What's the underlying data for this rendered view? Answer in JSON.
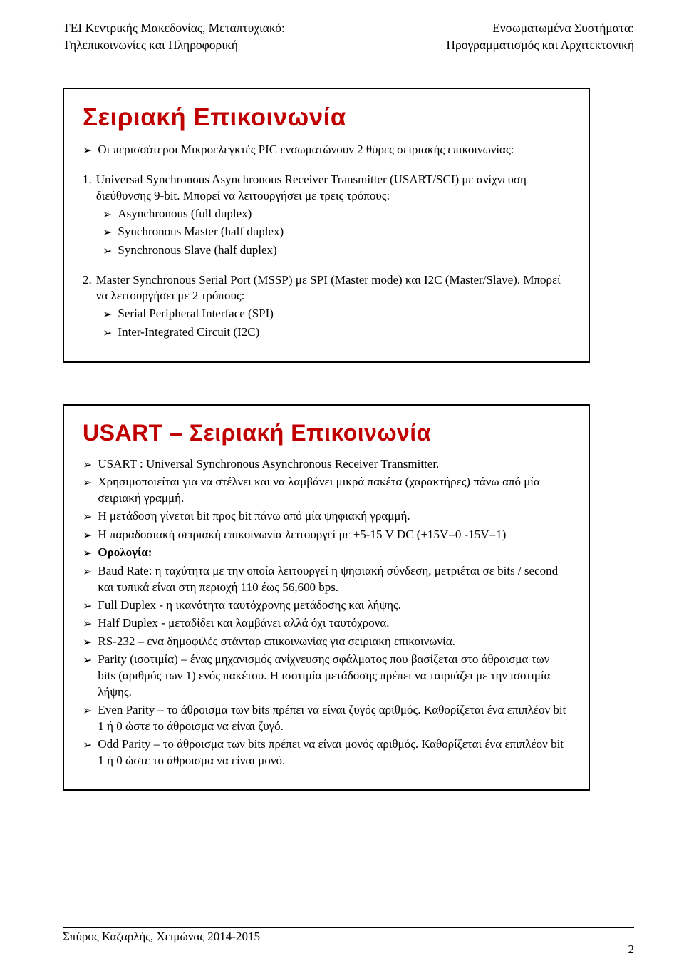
{
  "header": {
    "left_line1": "ΤΕΙ Κεντρικής Μακεδονίας, Μεταπτυχιακό:",
    "left_line2": "Τηλεπικοινωνίες και Πληροφορική",
    "right_line1": "Ενσωματωμένα Συστήματα:",
    "right_line2": "Προγραμματισμός και Αρχιτεκτονική"
  },
  "panel1": {
    "title": "Σειριακή Επικοινωνία",
    "intro_bullet": "Οι περισσότεροι Μικροελεγκτές PIC ενσωματώνουν 2 θύρες σειριακής επικοινωνίας:",
    "item1_num": "1.",
    "item1_text": "Universal Synchronous Asynchronous Receiver Transmitter (USART/SCI) με ανίχνευση διεύθυνσης 9-bit. Μπορεί να λειτουργήσει με τρεις τρόπους:",
    "item1_sub": [
      "Asynchronous (full duplex)",
      "Synchronous Master (half duplex)",
      "Synchronous Slave (half duplex)"
    ],
    "item2_num": "2.",
    "item2_text": "Master Synchronous Serial Port (MSSP) με SPI (Master mode) και I2C (Master/Slave). Μπορεί να λειτουργήσει με 2 τρόπους:",
    "item2_sub": [
      "Serial Peripheral Interface (SPI)",
      "Inter-Integrated Circuit (I2C)"
    ]
  },
  "panel2": {
    "title": "USART – Σειριακή Επικοινωνία",
    "bullets": [
      "USART : Universal Synchronous Asynchronous Receiver Transmitter.",
      "Χρησιμοποιείται για να στέλνει και να λαμβάνει μικρά πακέτα (χαρακτήρες) πάνω από μία σειριακή γραμμή.",
      "Η μετάδοση γίνεται bit προς bit πάνω από μία ψηφιακή γραμμή.",
      "Η παραδοσιακή σειριακή επικοινωνία λειτουργεί με ±5-15 V DC (+15V=0 -15V=1)",
      "Ορολογία:",
      "Baud Rate: η ταχύτητα με την οποία λειτουργεί η ψηφιακή σύνδεση, μετριέται σε bits / second και τυπικά είναι στη περιοχή 110 έως 56,600 bps.",
      "Full Duplex  -  η ικανότητα ταυτόχρονης μετάδοσης και λήψης.",
      "Half Duplex  - μεταδίδει και λαμβάνει αλλά όχι ταυτόχρονα.",
      "RS-232 – ένα δημοφιλές στάνταρ επικοινωνίας για σειριακή επικοινωνία.",
      "Parity (ισοτιμία) – ένας μηχανισμός ανίχνευσης σφάλματος που βασίζεται στο άθροισμα των bits (αριθμός των 1) ενός πακέτου. Η ισοτιμία μετάδοσης πρέπει να ταιριάζει με την ισοτιμία λήψης.",
      "Even Parity – το άθροισμα των bits πρέπει να είναι ζυγός αριθμός. Καθορίζεται ένα επιπλέον bit 1 ή 0 ώστε το άθροισμα να είναι ζυγό.",
      "Odd Parity – το άθροισμα των bits πρέπει να είναι μονός αριθμός. Καθορίζεται ένα επιπλέον bit 1 ή 0 ώστε το άθροισμα να είναι μονό."
    ],
    "bold_index": 4
  },
  "footer": {
    "left": "Σπύρος Καζαρλής, Χειμώνας 2014-2015",
    "page": "2"
  },
  "colors": {
    "title": "#c00000",
    "text": "#000000",
    "bg": "#ffffff"
  }
}
